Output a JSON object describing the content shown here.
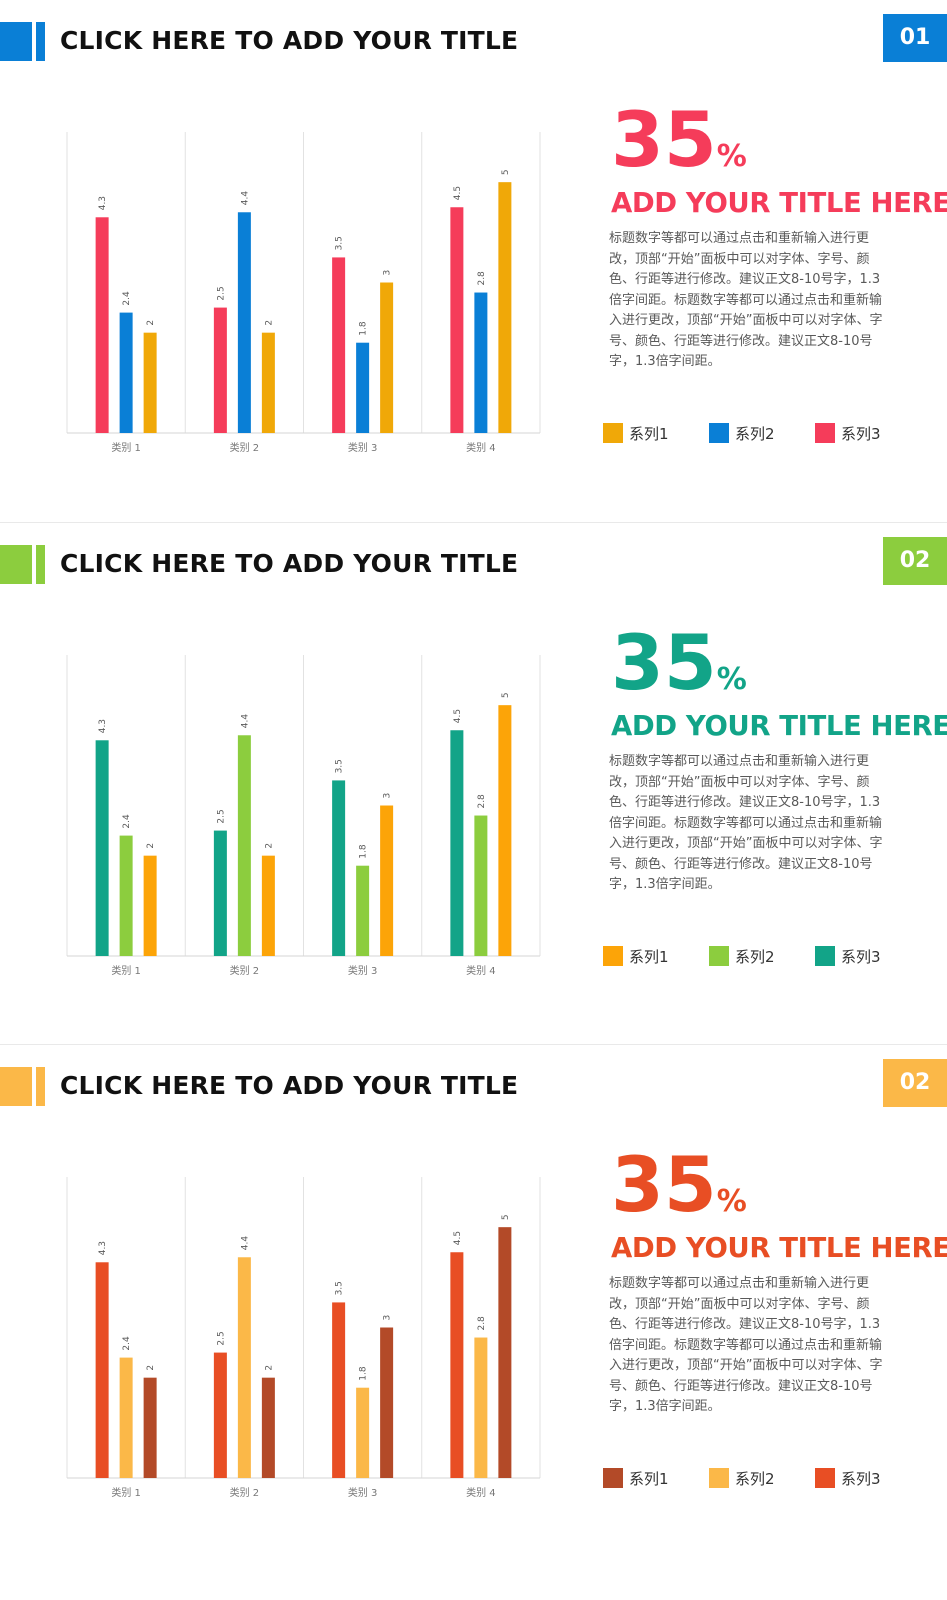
{
  "slides": [
    {
      "number": "01",
      "title": "CLICK HERE TO ADD YOUR TITLE",
      "accent": "#0a7fd6",
      "big_number": "35",
      "big_unit": "%",
      "highlight_color": "#f53c5a",
      "subtitle": "ADD YOUR TITLE HERE",
      "body": "标题数字等都可以通过点击和重新输入进行更改，顶部“开始”面板中可以对字体、字号、颜色、行距等进行修改。建议正文8-10号字，1.3倍字间距。标题数字等都可以通过点击和重新输入进行更改，顶部“开始”面板中可以对字体、字号、颜色、行距等进行修改。建议正文8-10号字，1.3倍字间距。",
      "chart_data": {
        "type": "bar",
        "categories": [
          "类别 1",
          "类别 2",
          "类别 3",
          "类别 4"
        ],
        "series": [
          {
            "name": "系列3",
            "color": "#f53c5a",
            "values": [
              4.3,
              2.5,
              3.5,
              4.5
            ]
          },
          {
            "name": "系列2",
            "color": "#0a7fd6",
            "values": [
              2.4,
              4.4,
              1.8,
              2.8
            ]
          },
          {
            "name": "系列1",
            "color": "#f0a808",
            "values": [
              2,
              2,
              3,
              5
            ]
          }
        ],
        "legend_order": [
          2,
          1,
          0
        ],
        "ylim": [
          0,
          6
        ],
        "grid": "vertical",
        "legend": "bottom-right"
      }
    },
    {
      "number": "02",
      "title": "CLICK HERE TO ADD YOUR TITLE",
      "accent": "#8ccd3e",
      "big_number": "35",
      "big_unit": "%",
      "highlight_color": "#12a488",
      "subtitle": "ADD YOUR TITLE HERE",
      "body": "标题数字等都可以通过点击和重新输入进行更改，顶部“开始”面板中可以对字体、字号、颜色、行距等进行修改。建议正文8-10号字，1.3倍字间距。标题数字等都可以通过点击和重新输入进行更改，顶部“开始”面板中可以对字体、字号、颜色、行距等进行修改。建议正文8-10号字，1.3倍字间距。",
      "chart_data": {
        "type": "bar",
        "categories": [
          "类别 1",
          "类别 2",
          "类别 3",
          "类别 4"
        ],
        "series": [
          {
            "name": "系列3",
            "color": "#12a488",
            "values": [
              4.3,
              2.5,
              3.5,
              4.5
            ]
          },
          {
            "name": "系列2",
            "color": "#8ccd3e",
            "values": [
              2.4,
              4.4,
              1.8,
              2.8
            ]
          },
          {
            "name": "系列1",
            "color": "#fca408",
            "values": [
              2,
              2,
              3,
              5
            ]
          }
        ],
        "legend_order": [
          2,
          1,
          0
        ],
        "ylim": [
          0,
          6
        ],
        "grid": "vertical",
        "legend": "bottom-right"
      }
    },
    {
      "number": "02",
      "title": "CLICK HERE TO ADD YOUR TITLE",
      "accent": "#fbb848",
      "big_number": "35",
      "big_unit": "%",
      "highlight_color": "#e84e24",
      "subtitle": "ADD YOUR TITLE HERE",
      "body": "标题数字等都可以通过点击和重新输入进行更改，顶部“开始”面板中可以对字体、字号、颜色、行距等进行修改。建议正文8-10号字，1.3倍字间距。标题数字等都可以通过点击和重新输入进行更改，顶部“开始”面板中可以对字体、字号、颜色、行距等进行修改。建议正文8-10号字，1.3倍字间距。",
      "chart_data": {
        "type": "bar",
        "categories": [
          "类别 1",
          "类别 2",
          "类别 3",
          "类别 4"
        ],
        "series": [
          {
            "name": "系列3",
            "color": "#e84e24",
            "values": [
              4.3,
              2.5,
              3.5,
              4.5
            ]
          },
          {
            "name": "系列2",
            "color": "#fbb848",
            "values": [
              2.4,
              4.4,
              1.8,
              2.8
            ]
          },
          {
            "name": "系列1",
            "color": "#b34a28",
            "values": [
              2,
              2,
              3,
              5
            ]
          }
        ],
        "legend_order": [
          2,
          1,
          0
        ],
        "ylim": [
          0,
          6
        ],
        "grid": "vertical",
        "legend": "bottom-right"
      }
    }
  ]
}
